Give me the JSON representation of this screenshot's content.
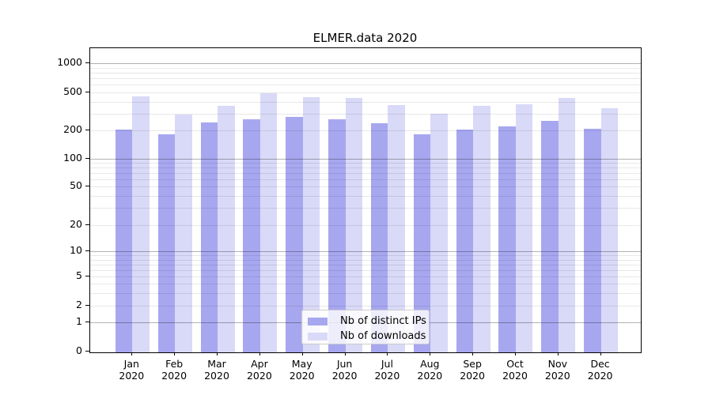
{
  "figure": {
    "title": "ELMER.data 2020"
  },
  "x_axis": {
    "months": [
      "Jan",
      "Feb",
      "Mar",
      "Apr",
      "May",
      "Jun",
      "Jul",
      "Aug",
      "Sep",
      "Oct",
      "Nov",
      "Dec"
    ],
    "year": "2020"
  },
  "y_axis": {
    "ticks": [
      0,
      1,
      2,
      5,
      10,
      20,
      50,
      100,
      200,
      500,
      1000
    ]
  },
  "legend": {
    "items": [
      {
        "label": "Nb of distinct IPs",
        "color": "#a7a7f0"
      },
      {
        "label": "Nb of downloads",
        "color": "#d9d9f8"
      }
    ]
  },
  "colors": {
    "distinct_ips_bar": "#a7a7f0",
    "downloads_bar": "#d9d9f8",
    "spine": "#000000",
    "background": "#ffffff"
  },
  "chart_data": {
    "type": "bar",
    "title": "ELMER.data 2020",
    "categories": [
      "Jan 2020",
      "Feb 2020",
      "Mar 2020",
      "Apr 2020",
      "May 2020",
      "Jun 2020",
      "Jul 2020",
      "Aug 2020",
      "Sep 2020",
      "Oct 2020",
      "Nov 2020",
      "Dec 2020"
    ],
    "series": [
      {
        "name": "Nb of distinct IPs",
        "color": "#a7a7f0",
        "values": [
          205,
          182,
          244,
          260,
          276,
          260,
          237,
          184,
          206,
          222,
          252,
          209
        ]
      },
      {
        "name": "Nb of downloads",
        "color": "#d9d9f8",
        "values": [
          450,
          292,
          364,
          487,
          442,
          434,
          371,
          297,
          360,
          378,
          432,
          340
        ]
      }
    ],
    "xlabel": "",
    "ylabel": "",
    "y_scale": "symlog",
    "y_ticks": [
      0,
      1,
      2,
      5,
      10,
      20,
      50,
      100,
      200,
      500,
      1000
    ],
    "ylim": [
      0,
      1400
    ],
    "grid": "horizontal major (powers of 10, darker) and minor log gridlines, drawn over bars",
    "legend_position": "inside plot, lower center-right"
  }
}
